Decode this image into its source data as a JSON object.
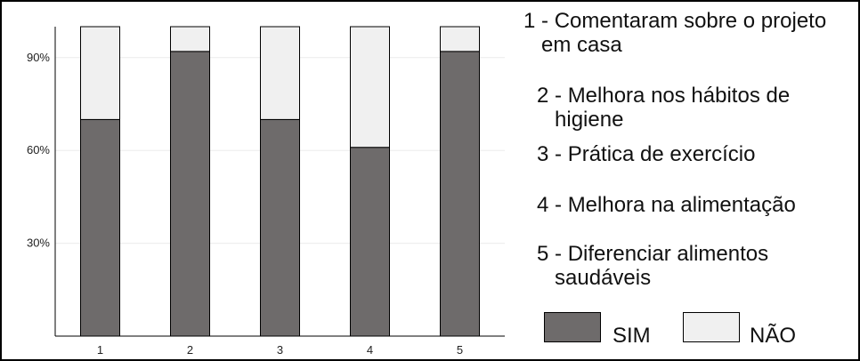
{
  "chart_data": {
    "type": "bar",
    "stacked": true,
    "categories": [
      "1",
      "2",
      "3",
      "4",
      "5"
    ],
    "series": [
      {
        "name": "SIM",
        "values": [
          70,
          92,
          70,
          61,
          92
        ],
        "color": "#6e6b6b"
      },
      {
        "name": "NÃO",
        "values": [
          30,
          8,
          30,
          39,
          8
        ],
        "color": "#f0f0f0"
      }
    ],
    "ylim": [
      0,
      100
    ],
    "yticks": [
      30,
      60,
      90
    ],
    "ytick_labels": [
      "30%",
      "60%",
      "90%"
    ],
    "grid": true
  },
  "legend": {
    "items": [
      {
        "num": "1",
        "text": "- Comentaram sobre o projeto em casa"
      },
      {
        "num": "2",
        "text": "- Melhora nos hábitos de higiene"
      },
      {
        "num": "3",
        "text": "- Prática de exercício"
      },
      {
        "num": "4",
        "text": "- Melhora na alimentação"
      },
      {
        "num": "5",
        "text": "- Diferenciar alimentos saudáveis"
      }
    ],
    "sim_label": "SIM",
    "nao_label": "NÃO"
  }
}
